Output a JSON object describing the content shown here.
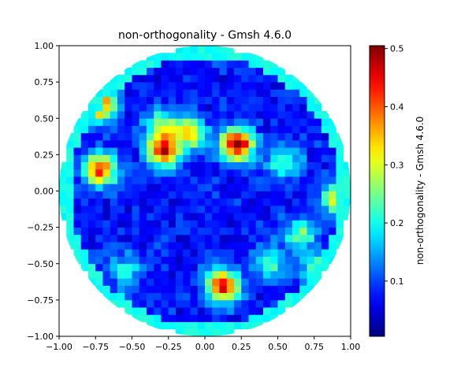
{
  "chart_data": {
    "type": "heatmap",
    "title": "non-orthogonality - Gmsh 4.6.0",
    "xlabel": "",
    "ylabel": "",
    "xlim": [
      -1.0,
      1.0
    ],
    "ylim": [
      -1.0,
      1.0
    ],
    "x_ticks": [
      "−1.00",
      "−0.75",
      "−0.50",
      "−0.25",
      "0.00",
      "0.25",
      "0.50",
      "0.75",
      "1.00"
    ],
    "y_ticks": [
      "−1.00",
      "−0.75",
      "−0.50",
      "−0.25",
      "0.00",
      "0.25",
      "0.50",
      "0.75",
      "1.00"
    ],
    "domain": "unit disk (circle of radius 1)",
    "colormap": "jet",
    "colorbar": {
      "label": "non-orthogonality - Gmsh 4.6.0",
      "min": 0.005,
      "max": 0.505,
      "ticks": [
        "0.1",
        "0.2",
        "0.3",
        "0.4",
        "0.5"
      ],
      "tick_values": [
        0.1,
        0.2,
        0.3,
        0.4,
        0.5
      ]
    },
    "grid": false,
    "hotspots": [
      {
        "x": -0.73,
        "y": 0.6,
        "value": 0.46
      },
      {
        "x": -0.72,
        "y": 0.15,
        "value": 0.4
      },
      {
        "x": -0.28,
        "y": 0.28,
        "value": 0.42
      },
      {
        "x": 0.22,
        "y": 0.32,
        "value": 0.49
      },
      {
        "x": 0.12,
        "y": -0.65,
        "value": 0.44
      },
      {
        "x": -0.1,
        "y": 0.4,
        "value": 0.3
      },
      {
        "x": 0.55,
        "y": 0.2,
        "value": 0.22
      },
      {
        "x": 0.65,
        "y": -0.3,
        "value": 0.24
      },
      {
        "x": -0.3,
        "y": 0.45,
        "value": 0.25
      },
      {
        "x": 0.45,
        "y": -0.5,
        "value": 0.2
      },
      {
        "x": 0.9,
        "y": -0.05,
        "value": 0.3
      },
      {
        "x": 0.8,
        "y": -0.55,
        "value": 0.32
      },
      {
        "x": -0.55,
        "y": -0.55,
        "value": 0.2
      }
    ],
    "boundary_ring_value": 0.2
  }
}
